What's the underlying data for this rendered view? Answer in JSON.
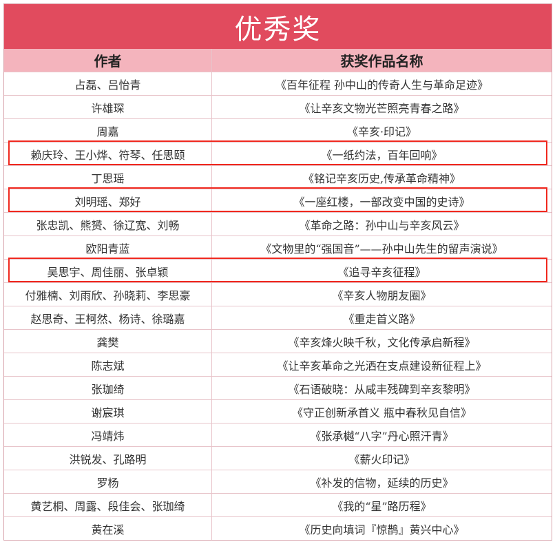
{
  "title": "优秀奖",
  "columns": [
    "作者",
    "获奖作品名称"
  ],
  "highlight_color": "#f0281e",
  "header_color": "#e14b5e",
  "rows": [
    {
      "author": "占磊、吕怡青",
      "work": "《百年征程 孙中山的传奇人生与革命足迹》",
      "highlighted": false
    },
    {
      "author": "许雄琛",
      "work": "《让辛亥文物光芒照亮青春之路》",
      "highlighted": false
    },
    {
      "author": "周嘉",
      "work": "《辛亥·印记》",
      "highlighted": false
    },
    {
      "author": "赖庆玲、王小烨、符琴、任思颐",
      "work": "《一纸约法，百年回响》",
      "highlighted": true
    },
    {
      "author": "丁思瑶",
      "work": "《铭记辛亥历史,传承革命精神》",
      "highlighted": false
    },
    {
      "author": "刘明瑶、郑好",
      "work": "《一座红楼，一部改变中国的史诗》",
      "highlighted": true
    },
    {
      "author": "张忠凯、熊赟、徐辽宽、刘畅",
      "work": "《革命之路：孙中山与辛亥风云》",
      "highlighted": false
    },
    {
      "author": "欧阳青蓝",
      "work": "《文物里的“强国音”——孙中山先生的留声演说》",
      "highlighted": false
    },
    {
      "author": "吴思宇、周佳丽、张卓颖",
      "work": "《追寻辛亥征程》",
      "highlighted": true
    },
    {
      "author": "付雅楠、刘雨欣、孙晓莉、李思豪",
      "work": "《辛亥人物朋友圈》",
      "highlighted": false
    },
    {
      "author": "赵思奇、王柯然、杨诗、徐璐嘉",
      "work": "《重走首义路》",
      "highlighted": false
    },
    {
      "author": "龚樊",
      "work": "《辛亥烽火映千秋，文化传承启新程》",
      "highlighted": false
    },
    {
      "author": "陈志斌",
      "work": "《让辛亥革命之光洒在支点建设新征程上》",
      "highlighted": false
    },
    {
      "author": "张珈绮",
      "work": "《石语破晓：从咸丰残碑到辛亥黎明》",
      "highlighted": false
    },
    {
      "author": "谢宸琪",
      "work": "《守正创新承首义 瓶中春秋见自信》",
      "highlighted": false
    },
    {
      "author": "冯靖炜",
      "work": "《张承樾“八字”丹心照汗青》",
      "highlighted": false
    },
    {
      "author": "洪锐发、孔路明",
      "work": "《薪火印记》",
      "highlighted": false
    },
    {
      "author": "罗杨",
      "work": "《补发的信物，延续的历史》",
      "highlighted": false
    },
    {
      "author": "黄艺桐、周露、段佳会、张珈绮",
      "work": "《我的“星”路历程》",
      "highlighted": false
    },
    {
      "author": "黄在溪",
      "work": "《历史向填词『惊鹊』黄兴中心》",
      "highlighted": false
    }
  ]
}
